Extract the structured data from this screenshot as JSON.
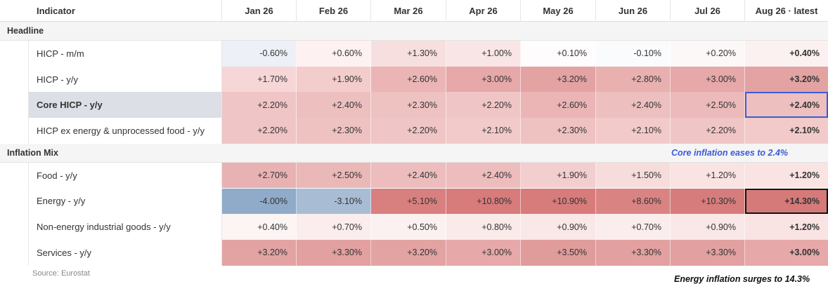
{
  "chart_data": {
    "type": "table",
    "columns": [
      "Indicator",
      "Jan 26",
      "Feb 26",
      "Mar 26",
      "Apr 26",
      "May 26",
      "Jun 26",
      "Jul 26",
      "Aug 26 · latest"
    ],
    "sections": [
      {
        "title": "Headline",
        "rows": [
          {
            "label": "HICP - m/m",
            "values": [
              "-0.60%",
              "+0.60%",
              "+1.30%",
              "+1.00%",
              "+0.10%",
              "-0.10%",
              "+0.20%",
              "+0.40%"
            ],
            "colors": [
              "#edf0f6",
              "#fdf1f1",
              "#f7dfdf",
              "#f9e5e5",
              "#fefcfc",
              "#fafbfd",
              "#fdf8f8",
              "#fcf1f1"
            ]
          },
          {
            "label": "HICP - y/y",
            "values": [
              "+1.70%",
              "+1.90%",
              "+2.60%",
              "+3.00%",
              "+3.20%",
              "+2.80%",
              "+3.00%",
              "+3.20%"
            ],
            "colors": [
              "#f6d6d6",
              "#f3cccc",
              "#ebb5b5",
              "#e6a8a8",
              "#e3a3a3",
              "#e9b0b0",
              "#e6a8a8",
              "#e3a3a3"
            ]
          },
          {
            "label": "Core HICP - y/y",
            "values": [
              "+2.20%",
              "+2.40%",
              "+2.30%",
              "+2.20%",
              "+2.60%",
              "+2.40%",
              "+2.50%",
              "+2.40%"
            ],
            "colors": [
              "#f0c5c5",
              "#edbfbf",
              "#efc2c2",
              "#f0c5c5",
              "#ebb5b5",
              "#edbfbf",
              "#ecbaba",
              "#edbfbf"
            ]
          },
          {
            "label": "HICP ex energy & unprocessed food - y/y",
            "values": [
              "+2.20%",
              "+2.30%",
              "+2.20%",
              "+2.10%",
              "+2.30%",
              "+2.10%",
              "+2.20%",
              "+2.10%"
            ],
            "colors": [
              "#f0c5c5",
              "#efc2c2",
              "#f0c5c5",
              "#f2caca",
              "#efc2c2",
              "#f2caca",
              "#f0c5c5",
              "#f2caca"
            ]
          }
        ]
      },
      {
        "title": "Inflation Mix",
        "rows": [
          {
            "label": "Food - y/y",
            "values": [
              "+2.70%",
              "+2.50%",
              "+2.40%",
              "+2.40%",
              "+1.90%",
              "+1.50%",
              "+1.20%",
              "+1.20%"
            ],
            "colors": [
              "#e9b2b2",
              "#ebb8b8",
              "#edbdbd",
              "#edbdbd",
              "#f3cece",
              "#f7dcdc",
              "#f9e3e3",
              "#f9e3e3"
            ]
          },
          {
            "label": "Energy - y/y",
            "values": [
              "-4.00%",
              "-3.10%",
              "+5.10%",
              "+10.80%",
              "+10.90%",
              "+8.60%",
              "+10.30%",
              "+14.30%"
            ],
            "colors": [
              "#8fabc9",
              "#a8bdd4",
              "#d8807f",
              "#d77b7b",
              "#d77b7b",
              "#d98483",
              "#d77c7c",
              "#d67979"
            ]
          },
          {
            "label": "Non-energy industrial goods - y/y",
            "values": [
              "+0.40%",
              "+0.70%",
              "+0.50%",
              "+0.80%",
              "+0.90%",
              "+0.70%",
              "+0.90%",
              "+1.20%"
            ],
            "colors": [
              "#fdf4f4",
              "#fbeded",
              "#fcf1f1",
              "#fbeaea",
              "#fae7e7",
              "#fbeded",
              "#fae7e7",
              "#f9e3e3"
            ]
          },
          {
            "label": "Services - y/y",
            "values": [
              "+3.20%",
              "+3.30%",
              "+3.20%",
              "+3.00%",
              "+3.50%",
              "+3.30%",
              "+3.30%",
              "+3.00%"
            ],
            "colors": [
              "#e3a3a3",
              "#e2a0a0",
              "#e3a3a3",
              "#e6a8a8",
              "#e09b9b",
              "#e2a0a0",
              "#e2a0a0",
              "#e6a8a8"
            ]
          }
        ]
      }
    ],
    "highlight_row": "Core HICP - y/y",
    "annotations": [
      {
        "text": "Core inflation eases to 2.4%",
        "target": "Core HICP - y/y · Aug 26 · latest",
        "color": "#3a5bd9"
      },
      {
        "text": "Energy inflation surges to 14.3%",
        "target": "Energy - y/y · Aug 26 · latest",
        "color": "#111111"
      }
    ],
    "source": "Source: Eurostat"
  }
}
